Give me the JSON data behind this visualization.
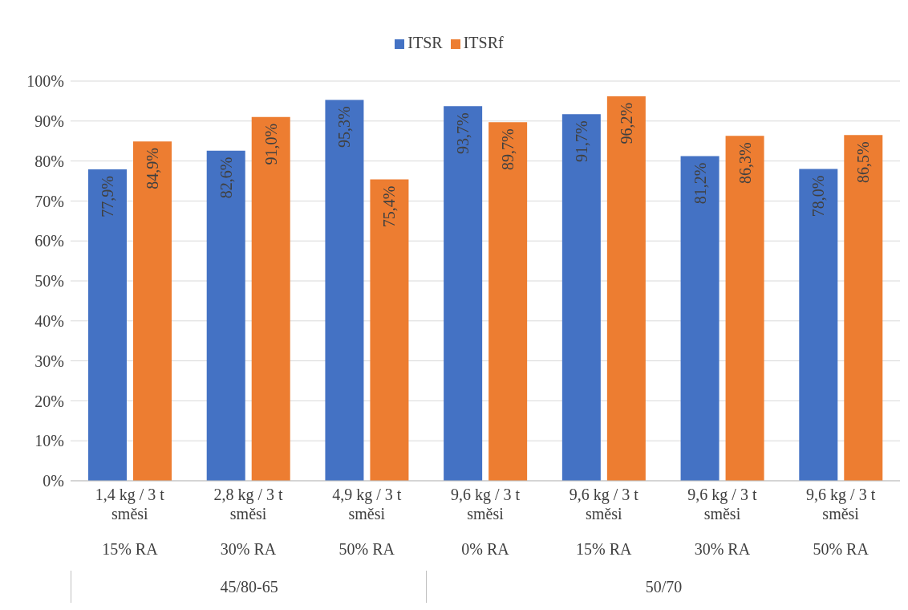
{
  "chart_data": {
    "type": "bar",
    "categories": [
      "1,4 kg / 3 t\nsměsi\n15% RA",
      "2,8 kg / 3 t\nsměsi\n30% RA",
      "4,9 kg / 3 t\nsměsi\n50% RA",
      "9,6 kg / 3 t\nsměsi\n0% RA",
      "9,6 kg / 3 t\nsměsi\n15% RA",
      "9,6 kg / 3 t\nsměsi\n30% RA",
      "9,6 kg / 3 t\nsměsi\n50% RA"
    ],
    "series": [
      {
        "name": "ITSR",
        "color": "#4472c4",
        "values": [
          77.9,
          82.6,
          95.3,
          93.7,
          91.7,
          81.2,
          78.0
        ],
        "value_labels": [
          "77,9%",
          "82,6%",
          "95,3%",
          "93,7%",
          "91,7%",
          "81,2%",
          "78,0%"
        ]
      },
      {
        "name": "ITSRf",
        "color": "#ed7d31",
        "values": [
          84.9,
          91.0,
          75.4,
          89.7,
          96.2,
          86.3,
          86.5
        ],
        "value_labels": [
          "84,9%",
          "91,0%",
          "75,4%",
          "89,7%",
          "96,2%",
          "86,3%",
          "86,5%"
        ]
      }
    ],
    "ylim": [
      0,
      100
    ],
    "yticks": [
      {
        "value": 0,
        "label": "0%"
      },
      {
        "value": 10,
        "label": "10%"
      },
      {
        "value": 20,
        "label": "20%"
      },
      {
        "value": 30,
        "label": "30%"
      },
      {
        "value": 40,
        "label": "40%"
      },
      {
        "value": 50,
        "label": "50%"
      },
      {
        "value": 60,
        "label": "60%"
      },
      {
        "value": 70,
        "label": "70%"
      },
      {
        "value": 80,
        "label": "80%"
      },
      {
        "value": 90,
        "label": "90%"
      },
      {
        "value": 100,
        "label": "100%"
      }
    ],
    "grid": "y",
    "legend": "top",
    "annotations": [
      "45/80-65",
      "50/70"
    ]
  }
}
